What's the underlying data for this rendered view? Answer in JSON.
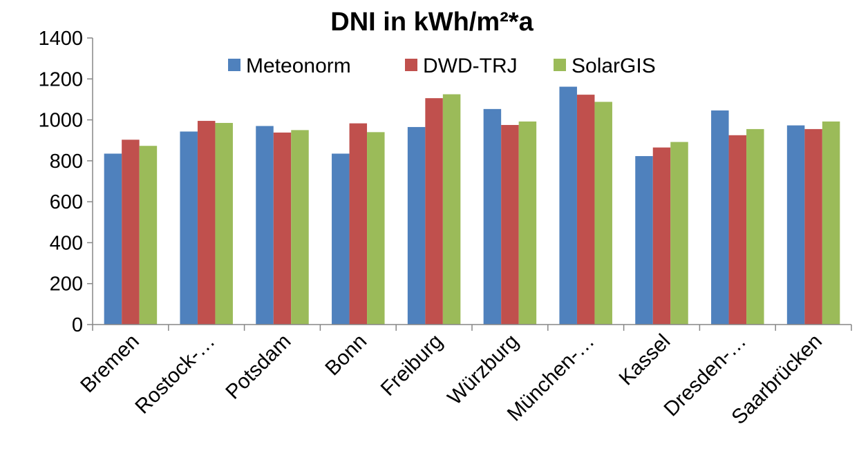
{
  "chart_data": {
    "type": "bar",
    "title": "DNI in kWh/m²*a",
    "xlabel": "",
    "ylabel": "",
    "ylim": [
      0,
      1400
    ],
    "yticks": [
      0,
      200,
      400,
      600,
      800,
      1000,
      1200,
      1400
    ],
    "grid": false,
    "legend_position": "top",
    "categories": [
      "Bremen",
      "Rostock-…",
      "Potsdam",
      "Bonn",
      "Freiburg",
      "Würzburg",
      "München-…",
      "Kassel",
      "Dresden-…",
      "Saarbrücken"
    ],
    "series": [
      {
        "name": "Meteonorm",
        "color": "#4F81BD",
        "values": [
          835,
          943,
          970,
          835,
          965,
          1053,
          1162,
          823,
          1046,
          973
        ]
      },
      {
        "name": "DWD-TRJ",
        "color": "#C0504D",
        "values": [
          903,
          995,
          938,
          983,
          1106,
          975,
          1123,
          865,
          925,
          955
        ]
      },
      {
        "name": "SolarGIS",
        "color": "#9BBB59",
        "values": [
          873,
          985,
          950,
          940,
          1125,
          992,
          1088,
          892,
          955,
          992
        ]
      }
    ]
  }
}
